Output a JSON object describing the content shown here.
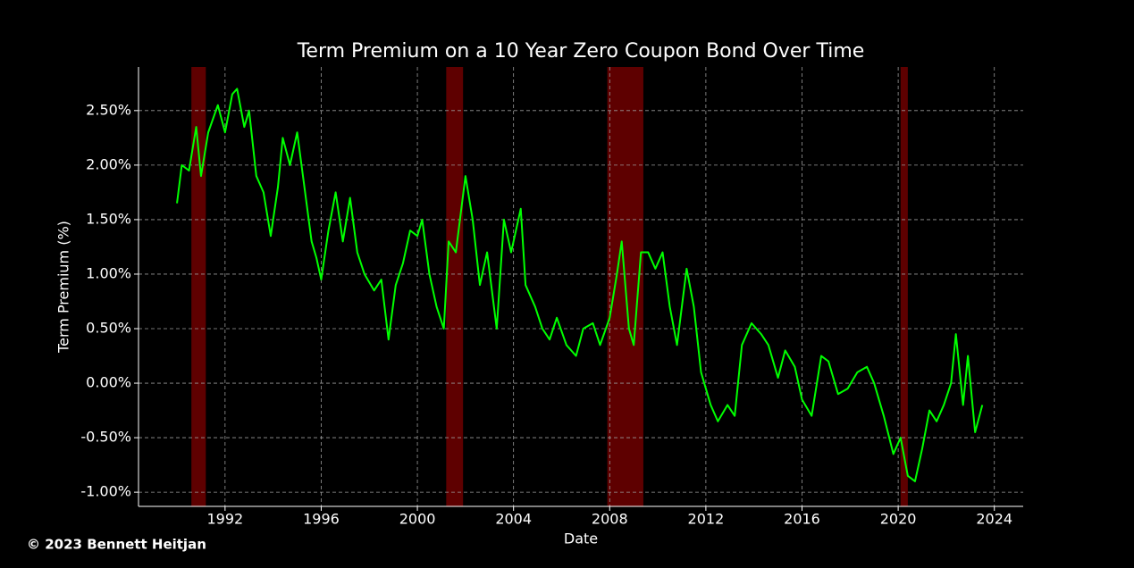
{
  "chart_data": {
    "type": "line",
    "title": "Term Premium on a 10 Year Zero Coupon Bond Over Time",
    "x_label": "Date",
    "y_label": "Term Premium (%)",
    "credit": "© 2023 Bennett Heitjan",
    "xlim": [
      1988.4,
      2025.2
    ],
    "ylim": [
      -1.13,
      2.9
    ],
    "xticks": [
      1992,
      1996,
      2000,
      2004,
      2008,
      2012,
      2016,
      2020,
      2024
    ],
    "yticks": [
      {
        "value": -1.0,
        "label": "-1.00%"
      },
      {
        "value": -0.5,
        "label": "-0.50%"
      },
      {
        "value": 0,
        "label": "0.00%"
      },
      {
        "value": 0.5,
        "label": "0.50%"
      },
      {
        "value": 1.0,
        "label": "1.00%"
      },
      {
        "value": 1.5,
        "label": "1.50%"
      },
      {
        "value": 2.0,
        "label": "2.00%"
      },
      {
        "value": 2.5,
        "label": "2.50%"
      }
    ],
    "grid": true,
    "shaded_regions": {
      "color": "#6e0000",
      "ranges": [
        [
          1990.6,
          1991.2
        ],
        [
          2001.2,
          2001.9
        ],
        [
          2007.9,
          2009.4
        ],
        [
          2020.1,
          2020.4
        ]
      ]
    },
    "series": [
      {
        "color": "#00ff00",
        "x": [
          1990.0,
          1990.2,
          1990.5,
          1990.8,
          1991.0,
          1991.3,
          1991.7,
          1992.0,
          1992.3,
          1992.5,
          1992.8,
          1993.0,
          1993.3,
          1993.6,
          1993.9,
          1994.2,
          1994.4,
          1994.7,
          1995.0,
          1995.3,
          1995.6,
          1995.8,
          1996.0,
          1996.3,
          1996.6,
          1996.9,
          1997.2,
          1997.5,
          1997.8,
          1998.2,
          1998.5,
          1998.8,
          1999.1,
          1999.4,
          1999.7,
          2000.0,
          2000.2,
          2000.5,
          2000.8,
          2001.1,
          2001.3,
          2001.6,
          2002.0,
          2002.3,
          2002.6,
          2002.9,
          2003.3,
          2003.6,
          2003.9,
          2004.3,
          2004.5,
          2004.9,
          2005.2,
          2005.5,
          2005.8,
          2006.2,
          2006.6,
          2006.9,
          2007.3,
          2007.6,
          2008.0,
          2008.3,
          2008.5,
          2008.8,
          2009.0,
          2009.3,
          2009.6,
          2009.9,
          2010.2,
          2010.5,
          2010.8,
          2011.2,
          2011.5,
          2011.8,
          2012.2,
          2012.5,
          2012.9,
          2013.2,
          2013.5,
          2013.9,
          2014.3,
          2014.6,
          2015.0,
          2015.3,
          2015.7,
          2016.0,
          2016.4,
          2016.8,
          2017.1,
          2017.5,
          2017.9,
          2018.3,
          2018.7,
          2019.0,
          2019.4,
          2019.8,
          2020.1,
          2020.4,
          2020.7,
          2021.0,
          2021.3,
          2021.6,
          2021.9,
          2022.2,
          2022.4,
          2022.7,
          2022.9,
          2023.2,
          2023.5
        ],
        "values": [
          1.65,
          2.0,
          1.95,
          2.35,
          1.9,
          2.3,
          2.55,
          2.3,
          2.65,
          2.7,
          2.35,
          2.5,
          1.9,
          1.75,
          1.35,
          1.8,
          2.25,
          2.0,
          2.3,
          1.8,
          1.3,
          1.15,
          0.95,
          1.4,
          1.75,
          1.3,
          1.7,
          1.2,
          1.0,
          0.85,
          0.95,
          0.4,
          0.9,
          1.1,
          1.4,
          1.35,
          1.5,
          1.0,
          0.7,
          0.5,
          1.3,
          1.2,
          1.9,
          1.5,
          0.9,
          1.2,
          0.5,
          1.5,
          1.2,
          1.6,
          0.9,
          0.7,
          0.5,
          0.4,
          0.6,
          0.35,
          0.25,
          0.5,
          0.55,
          0.35,
          0.6,
          1.0,
          1.3,
          0.5,
          0.35,
          1.2,
          1.2,
          1.05,
          1.2,
          0.7,
          0.35,
          1.05,
          0.7,
          0.1,
          -0.2,
          -0.35,
          -0.2,
          -0.3,
          0.35,
          0.55,
          0.45,
          0.35,
          0.05,
          0.3,
          0.15,
          -0.15,
          -0.3,
          0.25,
          0.2,
          -0.1,
          -0.05,
          0.1,
          0.15,
          0.0,
          -0.3,
          -0.65,
          -0.5,
          -0.85,
          -0.9,
          -0.6,
          -0.25,
          -0.35,
          -0.2,
          0.0,
          0.45,
          -0.2,
          0.25,
          -0.45,
          -0.2
        ]
      }
    ]
  }
}
